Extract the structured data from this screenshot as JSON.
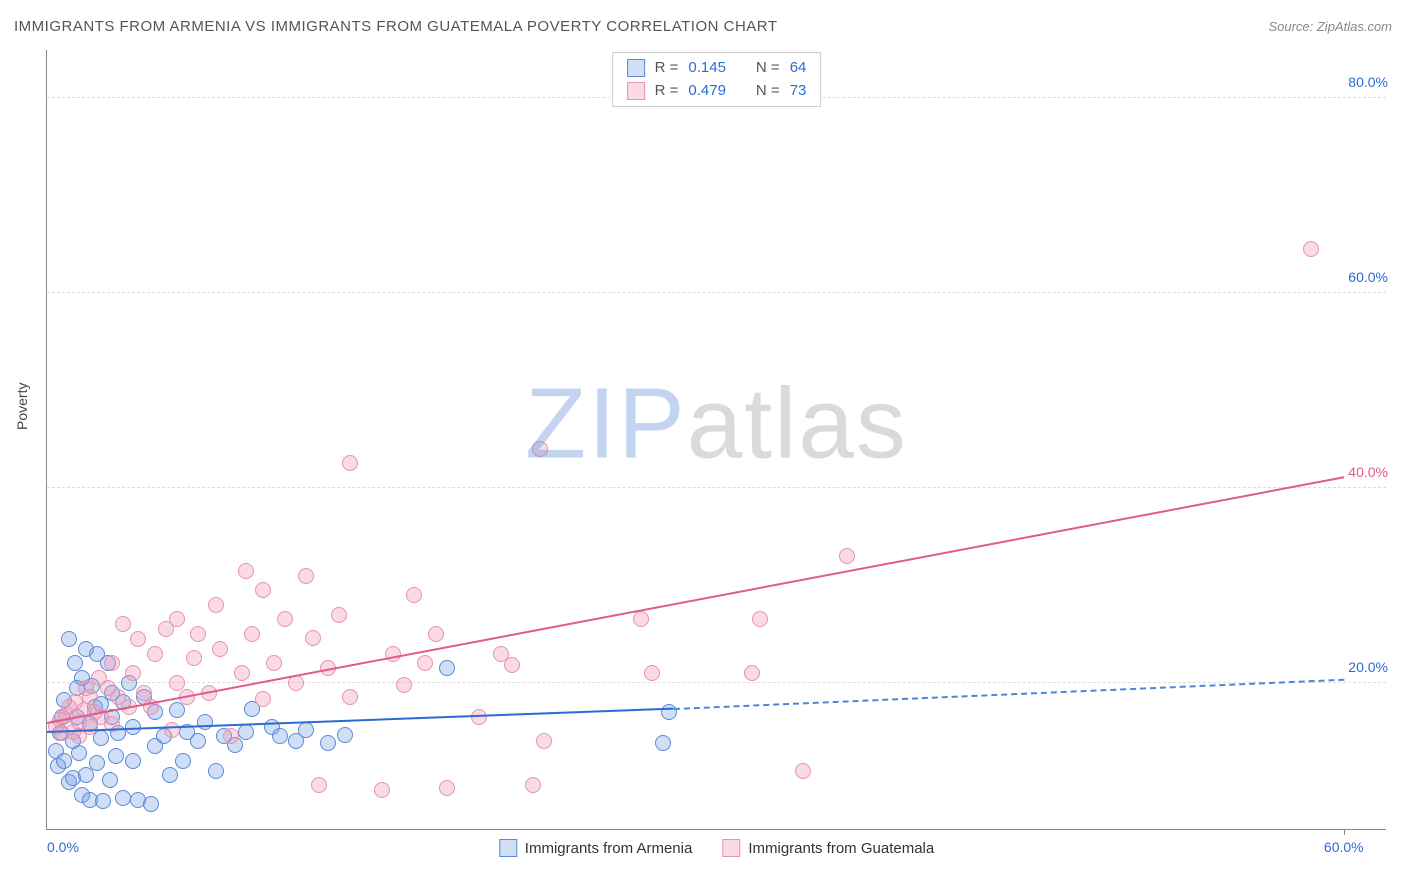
{
  "title": "IMMIGRANTS FROM ARMENIA VS IMMIGRANTS FROM GUATEMALA POVERTY CORRELATION CHART",
  "source_label": "Source: ZipAtlas.com",
  "ylabel": "Poverty",
  "watermark": {
    "z": "ZIP",
    "rest": "atlas"
  },
  "chart": {
    "type": "scatter",
    "xlim": [
      0,
      62
    ],
    "ylim": [
      5,
      85
    ],
    "xticks": [
      {
        "v": 0,
        "label": "0.0%",
        "color": "#2b6cd4"
      },
      {
        "v": 60,
        "label": "60.0%",
        "color": "#2b6cd4"
      }
    ],
    "yticks": [
      {
        "v": 20,
        "label": "20.0%",
        "color": "#2b6cd4"
      },
      {
        "v": 40,
        "label": "40.0%",
        "color": "#e05a8a"
      },
      {
        "v": 60,
        "label": "60.0%",
        "color": "#2b6cd4"
      },
      {
        "v": 80,
        "label": "80.0%",
        "color": "#2b6cd4"
      }
    ],
    "grid_color": "#dddddd",
    "background_color": "#ffffff",
    "marker_radius": 8,
    "marker_border_width": 1.2,
    "series": [
      {
        "name": "Immigrants from Armenia",
        "fill": "rgba(120,160,230,0.35)",
        "stroke": "#5a8ad6",
        "r_value": "0.145",
        "n_value": "64",
        "trend": {
          "x1": 0,
          "y1": 14.8,
          "x2": 29,
          "y2": 17.2,
          "color": "#2b6cd4",
          "dash": false
        },
        "trend_ext": {
          "x1": 29,
          "y1": 17.2,
          "x2": 60,
          "y2": 20.2,
          "color": "#4d86d8",
          "dash": true
        },
        "points": [
          [
            0.4,
            13.0
          ],
          [
            0.5,
            11.5
          ],
          [
            0.6,
            14.8
          ],
          [
            0.7,
            16.5
          ],
          [
            0.8,
            18.2
          ],
          [
            0.8,
            12.0
          ],
          [
            1.0,
            24.5
          ],
          [
            1.0,
            9.8
          ],
          [
            1.2,
            10.2
          ],
          [
            1.2,
            14.0
          ],
          [
            1.3,
            22.0
          ],
          [
            1.4,
            16.5
          ],
          [
            1.4,
            19.5
          ],
          [
            1.5,
            12.8
          ],
          [
            1.6,
            8.5
          ],
          [
            1.6,
            20.5
          ],
          [
            1.8,
            10.5
          ],
          [
            1.8,
            23.5
          ],
          [
            2.0,
            8.0
          ],
          [
            2.0,
            15.8
          ],
          [
            2.1,
            19.7
          ],
          [
            2.2,
            17.5
          ],
          [
            2.3,
            11.8
          ],
          [
            2.3,
            23.0
          ],
          [
            2.5,
            14.3
          ],
          [
            2.5,
            17.8
          ],
          [
            2.6,
            7.9
          ],
          [
            2.8,
            22.0
          ],
          [
            2.9,
            10.0
          ],
          [
            3.0,
            16.5
          ],
          [
            3.0,
            19.0
          ],
          [
            3.2,
            12.5
          ],
          [
            3.3,
            14.8
          ],
          [
            3.5,
            18.0
          ],
          [
            3.5,
            8.2
          ],
          [
            3.8,
            20.0
          ],
          [
            4.0,
            12.0
          ],
          [
            4.0,
            15.5
          ],
          [
            4.2,
            8.0
          ],
          [
            4.5,
            18.5
          ],
          [
            4.8,
            7.6
          ],
          [
            5.0,
            13.5
          ],
          [
            5.0,
            17.0
          ],
          [
            5.4,
            14.5
          ],
          [
            5.7,
            10.5
          ],
          [
            6.0,
            17.2
          ],
          [
            6.3,
            12.0
          ],
          [
            6.5,
            15.0
          ],
          [
            7.0,
            14.0
          ],
          [
            7.3,
            16.0
          ],
          [
            7.8,
            11.0
          ],
          [
            8.2,
            14.5
          ],
          [
            8.7,
            13.6
          ],
          [
            9.2,
            15.0
          ],
          [
            9.5,
            17.3
          ],
          [
            10.4,
            15.5
          ],
          [
            10.8,
            14.5
          ],
          [
            11.5,
            14.0
          ],
          [
            12.0,
            15.2
          ],
          [
            13.0,
            13.8
          ],
          [
            13.8,
            14.6
          ],
          [
            18.5,
            21.5
          ],
          [
            28.5,
            13.8
          ],
          [
            28.8,
            17.0
          ]
        ]
      },
      {
        "name": "Immigrants from Guatemala",
        "fill": "rgba(240,150,180,0.35)",
        "stroke": "#e693b0",
        "r_value": "0.479",
        "n_value": "73",
        "trend": {
          "x1": 0,
          "y1": 15.8,
          "x2": 60,
          "y2": 41.0,
          "color": "#e05a8a",
          "dash": false
        },
        "points": [
          [
            0.4,
            15.5
          ],
          [
            0.6,
            16.2
          ],
          [
            0.7,
            14.8
          ],
          [
            0.9,
            16.6
          ],
          [
            1.0,
            17.5
          ],
          [
            1.2,
            15.0
          ],
          [
            1.3,
            18.0
          ],
          [
            1.5,
            16.0
          ],
          [
            1.5,
            14.5
          ],
          [
            1.7,
            17.2
          ],
          [
            1.8,
            19.5
          ],
          [
            2.0,
            15.5
          ],
          [
            2.0,
            18.5
          ],
          [
            2.2,
            17.0
          ],
          [
            2.4,
            20.5
          ],
          [
            2.5,
            16.5
          ],
          [
            2.8,
            19.5
          ],
          [
            3.0,
            22.0
          ],
          [
            3.0,
            15.8
          ],
          [
            3.3,
            18.5
          ],
          [
            3.5,
            26.0
          ],
          [
            3.8,
            17.5
          ],
          [
            4.0,
            21.0
          ],
          [
            4.2,
            24.5
          ],
          [
            4.5,
            19.0
          ],
          [
            4.8,
            17.5
          ],
          [
            5.0,
            23.0
          ],
          [
            5.5,
            25.5
          ],
          [
            5.8,
            15.2
          ],
          [
            6.0,
            20.0
          ],
          [
            6.0,
            26.5
          ],
          [
            6.5,
            18.5
          ],
          [
            6.8,
            22.5
          ],
          [
            7.0,
            25.0
          ],
          [
            7.5,
            19.0
          ],
          [
            7.8,
            28.0
          ],
          [
            8.0,
            23.5
          ],
          [
            8.5,
            14.5
          ],
          [
            9.0,
            21.0
          ],
          [
            9.2,
            31.5
          ],
          [
            9.5,
            25.0
          ],
          [
            10.0,
            18.3
          ],
          [
            10.0,
            29.5
          ],
          [
            10.5,
            22.0
          ],
          [
            11.0,
            26.5
          ],
          [
            11.5,
            20.0
          ],
          [
            12.0,
            31.0
          ],
          [
            12.3,
            24.6
          ],
          [
            12.6,
            9.5
          ],
          [
            13.0,
            21.5
          ],
          [
            13.5,
            27.0
          ],
          [
            14.0,
            42.5
          ],
          [
            14.0,
            18.5
          ],
          [
            15.5,
            9.0
          ],
          [
            16.0,
            23.0
          ],
          [
            16.5,
            19.8
          ],
          [
            17.0,
            29.0
          ],
          [
            17.5,
            22.0
          ],
          [
            18.0,
            25.0
          ],
          [
            18.5,
            9.2
          ],
          [
            20.0,
            16.5
          ],
          [
            21.0,
            23.0
          ],
          [
            21.5,
            21.8
          ],
          [
            22.5,
            9.5
          ],
          [
            22.8,
            44.0
          ],
          [
            23.0,
            14.0
          ],
          [
            27.5,
            26.5
          ],
          [
            28.0,
            21.0
          ],
          [
            32.6,
            21.0
          ],
          [
            33.0,
            26.5
          ],
          [
            35.0,
            11.0
          ],
          [
            37.0,
            33.0
          ],
          [
            58.5,
            64.5
          ]
        ]
      }
    ]
  },
  "legend_top": {
    "r_label": "R  =",
    "n_label": "N  =",
    "value_color": "#2b6cd4",
    "text_color": "#555"
  },
  "legend_bottom_label_a": "Immigrants from Armenia",
  "legend_bottom_label_b": "Immigrants from Guatemala"
}
